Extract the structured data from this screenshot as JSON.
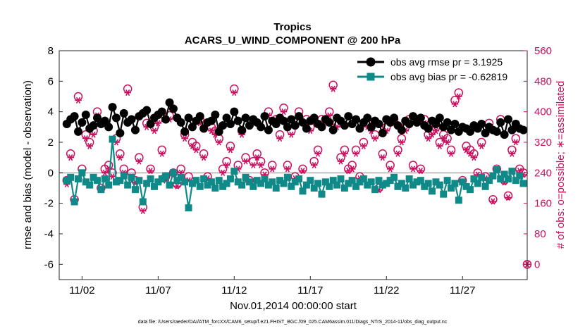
{
  "chart_data": {
    "type": "line",
    "title": "Tropics",
    "subtitle": "ACARS_U_WIND_COMPONENT @ 200 hPa",
    "xlabel": "Nov.01,2014 00:00:00 start",
    "ylabel": "rmse and bias (model - observation)",
    "ylabel_right": "# of obs: o=possible; ∗=assimilated",
    "ylim": [
      -7,
      8
    ],
    "ylim_right": [
      -40,
      560
    ],
    "xlim": [
      0.5,
      31.25
    ],
    "x_ticks": [
      {
        "x": 2,
        "label": "11/02"
      },
      {
        "x": 7,
        "label": "11/07"
      },
      {
        "x": 12,
        "label": "11/12"
      },
      {
        "x": 17,
        "label": "11/17"
      },
      {
        "x": 22,
        "label": "11/22"
      },
      {
        "x": 27,
        "label": "11/27"
      }
    ],
    "y_ticks": [
      "8",
      "6",
      "4",
      "2",
      "0",
      "-2",
      "-4",
      "-6"
    ],
    "y_ticks_right": [
      "560",
      "480",
      "400",
      "320",
      "240",
      "160",
      "80",
      "0"
    ],
    "legend_position": "top-right",
    "grid": false,
    "zero_line": 0,
    "colors": {
      "rmse": "#000000",
      "bias": "#108a88",
      "count": "#cc0e5e",
      "zero": "#c0c0c0"
    },
    "series": [
      {
        "name": "obs avg rmse pr = 3.1925",
        "axis": "left",
        "x": [
          1.0,
          1.25,
          1.5,
          1.75,
          2.0,
          2.25,
          2.5,
          2.75,
          3.0,
          3.25,
          3.5,
          3.75,
          4.0,
          4.25,
          4.5,
          4.75,
          5.0,
          5.25,
          5.5,
          5.75,
          6.0,
          6.25,
          6.5,
          6.75,
          7.0,
          7.25,
          7.5,
          7.75,
          8.0,
          8.25,
          8.5,
          8.75,
          9.0,
          9.25,
          9.5,
          9.75,
          10.0,
          10.25,
          10.5,
          10.75,
          11.0,
          11.25,
          11.5,
          11.75,
          12.0,
          12.25,
          12.5,
          12.75,
          13.0,
          13.25,
          13.5,
          13.75,
          14.0,
          14.25,
          14.5,
          14.75,
          15.0,
          15.25,
          15.5,
          15.75,
          16.0,
          16.25,
          16.5,
          16.75,
          17.0,
          17.25,
          17.5,
          17.75,
          18.0,
          18.25,
          18.5,
          18.75,
          19.0,
          19.25,
          19.5,
          19.75,
          20.0,
          20.25,
          20.5,
          20.75,
          21.0,
          21.25,
          21.5,
          21.75,
          22.0,
          22.25,
          22.5,
          22.75,
          23.0,
          23.25,
          23.5,
          23.75,
          24.0,
          24.25,
          24.5,
          24.75,
          25.0,
          25.25,
          25.5,
          25.75,
          26.0,
          26.25,
          26.5,
          26.75,
          27.0,
          27.25,
          27.5,
          27.75,
          28.0,
          28.25,
          28.5,
          28.75,
          29.0,
          29.25,
          29.5,
          29.75,
          30.0,
          30.25,
          30.5,
          30.75,
          31.0
        ],
        "values": [
          3.2,
          3.5,
          3.7,
          2.7,
          3.3,
          3.8,
          2.9,
          3.1,
          3.6,
          3.2,
          3.4,
          3.0,
          4.3,
          3.6,
          2.6,
          3.9,
          3.3,
          3.5,
          2.8,
          3.7,
          3.9,
          4.1,
          3.2,
          3.6,
          3.8,
          4.0,
          3.5,
          4.6,
          4.2,
          3.6,
          3.3,
          2.7,
          3.6,
          3.0,
          3.4,
          3.7,
          2.9,
          3.3,
          3.4,
          3.8,
          2.7,
          3.1,
          3.6,
          3.2,
          4.0,
          3.4,
          2.8,
          3.6,
          3.1,
          3.5,
          3.3,
          3.0,
          3.7,
          2.8,
          3.4,
          3.2,
          3.6,
          3.4,
          3.0,
          3.5,
          3.1,
          3.7,
          3.3,
          2.9,
          3.4,
          3.6,
          3.2,
          3.0,
          3.5,
          3.3,
          2.8,
          3.6,
          3.4,
          3.1,
          3.7,
          3.2,
          3.5,
          2.9,
          3.3,
          3.6,
          3.0,
          3.4,
          3.2,
          2.6,
          3.5,
          3.3,
          3.6,
          3.1,
          2.8,
          3.4,
          3.2,
          3.7,
          3.3,
          3.6,
          3.1,
          2.9,
          3.4,
          3.2,
          3.6,
          3.0,
          3.3,
          2.8,
          3.2,
          2.7,
          3.0,
          2.9,
          2.7,
          3.1,
          2.9,
          3.2,
          2.6,
          3.0,
          2.8,
          2.7,
          3.3,
          2.5,
          3.5,
          2.8,
          3.2,
          2.9,
          2.8
        ]
      },
      {
        "name": "obs avg bias pr = -0.62819",
        "axis": "left",
        "x": [
          1.0,
          1.25,
          1.5,
          1.75,
          2.0,
          2.25,
          2.5,
          2.75,
          3.0,
          3.25,
          3.5,
          3.75,
          4.0,
          4.25,
          4.5,
          4.75,
          5.0,
          5.25,
          5.5,
          5.75,
          6.0,
          6.25,
          6.5,
          6.75,
          7.0,
          7.25,
          7.5,
          7.75,
          8.0,
          8.25,
          8.5,
          8.75,
          9.0,
          9.25,
          9.5,
          9.75,
          10.0,
          10.25,
          10.5,
          10.75,
          11.0,
          11.25,
          11.5,
          11.75,
          12.0,
          12.25,
          12.5,
          12.75,
          13.0,
          13.25,
          13.5,
          13.75,
          14.0,
          14.25,
          14.5,
          14.75,
          15.0,
          15.25,
          15.5,
          15.75,
          16.0,
          16.25,
          16.5,
          16.75,
          17.0,
          17.25,
          17.5,
          17.75,
          18.0,
          18.25,
          18.5,
          18.75,
          19.0,
          19.25,
          19.5,
          19.75,
          20.0,
          20.25,
          20.5,
          20.75,
          21.0,
          21.25,
          21.5,
          21.75,
          22.0,
          22.25,
          22.5,
          22.75,
          23.0,
          23.25,
          23.5,
          23.75,
          24.0,
          24.25,
          24.5,
          24.75,
          25.0,
          25.25,
          25.5,
          25.75,
          26.0,
          26.25,
          26.5,
          26.75,
          27.0,
          27.25,
          27.5,
          27.75,
          28.0,
          28.25,
          28.5,
          28.75,
          29.0,
          29.25,
          29.5,
          29.75,
          30.0,
          30.25,
          30.5,
          30.75,
          31.0
        ],
        "values": [
          -0.5,
          -0.3,
          -1.9,
          -0.4,
          0.0,
          -0.6,
          -0.8,
          -0.3,
          -0.5,
          -1.1,
          -0.4,
          -0.8,
          2.2,
          -0.6,
          -0.5,
          -0.2,
          -0.8,
          -0.3,
          -1.1,
          -0.5,
          -1.9,
          -0.7,
          -0.4,
          -0.9,
          -0.6,
          -0.4,
          -0.2,
          -0.8,
          0.0,
          -0.5,
          -0.3,
          -0.6,
          -2.3,
          -0.7,
          -0.5,
          -0.9,
          -0.4,
          -0.8,
          -0.6,
          -1.0,
          -0.5,
          -0.9,
          -0.7,
          -0.4,
          0.1,
          -0.6,
          -0.8,
          -0.3,
          -0.6,
          -0.9,
          -0.5,
          -0.7,
          -0.4,
          -0.8,
          -0.6,
          -1.0,
          -0.5,
          -0.7,
          -0.3,
          -0.9,
          -0.6,
          -0.4,
          -1.2,
          -0.8,
          -0.5,
          -1.0,
          -0.7,
          -1.4,
          -0.6,
          -0.9,
          -0.5,
          -0.8,
          -0.4,
          -1.0,
          -0.7,
          -0.5,
          -0.9,
          -0.6,
          -0.4,
          -0.8,
          -0.6,
          -1.1,
          -0.5,
          -0.8,
          -0.7,
          -0.5,
          -0.3,
          -0.9,
          -0.7,
          -1.0,
          -0.4,
          -0.8,
          -0.6,
          -0.5,
          -0.9,
          -0.7,
          -1.2,
          -0.6,
          -0.8,
          -1.4,
          -0.5,
          -1.0,
          -0.7,
          -1.8,
          -0.6,
          -0.9,
          -1.1,
          -0.4,
          -0.7,
          -0.3,
          -0.9,
          -0.5,
          -0.2,
          0.2,
          -0.4,
          -0.1,
          -0.4,
          0.1,
          -0.5,
          -0.2,
          -0.7
        ]
      },
      {
        "name": "obs count possible",
        "axis": "right",
        "marker": "circle",
        "x": [
          1.0,
          1.25,
          1.5,
          1.75,
          2.0,
          2.25,
          2.5,
          2.75,
          3.0,
          3.25,
          3.5,
          3.75,
          4.0,
          4.25,
          4.5,
          4.75,
          5.0,
          5.25,
          5.5,
          5.75,
          6.0,
          6.25,
          6.5,
          6.75,
          7.0,
          7.25,
          7.5,
          7.75,
          8.0,
          8.25,
          8.5,
          8.75,
          9.0,
          9.25,
          9.5,
          9.75,
          10.0,
          10.25,
          10.5,
          10.75,
          11.0,
          11.25,
          11.5,
          11.75,
          12.0,
          12.25,
          12.5,
          12.75,
          13.0,
          13.25,
          13.5,
          13.75,
          14.0,
          14.25,
          14.5,
          14.75,
          15.0,
          15.25,
          15.5,
          15.75,
          16.0,
          16.25,
          16.5,
          16.75,
          17.0,
          17.25,
          17.5,
          17.75,
          18.0,
          18.25,
          18.5,
          18.75,
          19.0,
          19.25,
          19.5,
          19.75,
          20.0,
          20.25,
          20.5,
          20.75,
          21.0,
          21.25,
          21.5,
          21.75,
          22.0,
          22.25,
          22.5,
          22.75,
          23.0,
          23.25,
          23.5,
          23.75,
          24.0,
          24.25,
          24.5,
          24.75,
          25.0,
          25.25,
          25.5,
          25.75,
          26.0,
          26.25,
          26.5,
          26.75,
          27.0,
          27.25,
          27.5,
          27.75,
          28.0,
          28.25,
          28.5,
          28.75,
          29.0,
          29.25,
          29.5,
          29.75,
          30.0,
          30.25,
          30.5,
          30.75,
          31.0,
          31.25
        ],
        "values": [
          220,
          290,
          170,
          440,
          250,
          340,
          320,
          350,
          400,
          200,
          250,
          260,
          240,
          330,
          290,
          250,
          460,
          240,
          220,
          280,
          150,
          370,
          250,
          360,
          380,
          300,
          230,
          390,
          240,
          210,
          250,
          340,
          230,
          320,
          310,
          380,
          290,
          230,
          360,
          350,
          330,
          250,
          270,
          310,
          460,
          260,
          350,
          280,
          220,
          270,
          290,
          270,
          240,
          400,
          260,
          380,
          340,
          410,
          260,
          350,
          230,
          400,
          250,
          380,
          360,
          270,
          300,
          380,
          380,
          400,
          470,
          370,
          280,
          300,
          250,
          260,
          300,
          230,
          320,
          370,
          360,
          340,
          200,
          290,
          360,
          260,
          380,
          300,
          330,
          360,
          380,
          260,
          380,
          250,
          380,
          340,
          350,
          360,
          320,
          340,
          330,
          300,
          430,
          450,
          220,
          310,
          300,
          290,
          240,
          320,
          230,
          370,
          170,
          250,
          380,
          220,
          180,
          300,
          330,
          250,
          240,
          0
        ],
        "labels": [
          "0"
        ]
      },
      {
        "name": "obs count assimilated",
        "axis": "right",
        "marker": "asterisk",
        "x": [
          1.0,
          1.25,
          1.5,
          1.75,
          2.0,
          2.25,
          2.5,
          2.75,
          3.0,
          3.25,
          3.5,
          3.75,
          4.0,
          4.25,
          4.5,
          4.75,
          5.0,
          5.25,
          5.5,
          5.75,
          6.0,
          6.25,
          6.5,
          6.75,
          7.0,
          7.25,
          7.5,
          7.75,
          8.0,
          8.25,
          8.5,
          8.75,
          9.0,
          9.25,
          9.5,
          9.75,
          10.0,
          10.25,
          10.5,
          10.75,
          11.0,
          11.25,
          11.5,
          11.75,
          12.0,
          12.25,
          12.5,
          12.75,
          13.0,
          13.25,
          13.5,
          13.75,
          14.0,
          14.25,
          14.5,
          14.75,
          15.0,
          15.25,
          15.5,
          15.75,
          16.0,
          16.25,
          16.5,
          16.75,
          17.0,
          17.25,
          17.5,
          17.75,
          18.0,
          18.25,
          18.5,
          18.75,
          19.0,
          19.25,
          19.5,
          19.75,
          20.0,
          20.25,
          20.5,
          20.75,
          21.0,
          21.25,
          21.5,
          21.75,
          22.0,
          22.25,
          22.5,
          22.75,
          23.0,
          23.25,
          23.5,
          23.75,
          24.0,
          24.25,
          24.5,
          24.75,
          25.0,
          25.25,
          25.5,
          25.75,
          26.0,
          26.25,
          26.5,
          26.75,
          27.0,
          27.25,
          27.5,
          27.75,
          28.0,
          28.25,
          28.5,
          28.75,
          29.0,
          29.25,
          29.5,
          29.75,
          30.0,
          30.25,
          30.5,
          30.75,
          31.0,
          31.25
        ],
        "values": [
          210,
          280,
          165,
          430,
          240,
          330,
          310,
          340,
          390,
          195,
          240,
          250,
          230,
          320,
          280,
          240,
          450,
          230,
          215,
          270,
          140,
          360,
          245,
          350,
          370,
          290,
          220,
          380,
          235,
          205,
          240,
          330,
          220,
          310,
          300,
          370,
          280,
          225,
          350,
          340,
          320,
          240,
          260,
          300,
          450,
          250,
          340,
          270,
          215,
          260,
          280,
          260,
          235,
          390,
          250,
          370,
          330,
          400,
          250,
          340,
          225,
          390,
          245,
          370,
          350,
          260,
          290,
          370,
          370,
          390,
          460,
          360,
          270,
          290,
          245,
          250,
          290,
          225,
          310,
          360,
          350,
          330,
          195,
          280,
          350,
          250,
          370,
          290,
          320,
          350,
          370,
          250,
          370,
          245,
          370,
          330,
          340,
          350,
          310,
          330,
          320,
          290,
          420,
          440,
          215,
          300,
          290,
          280,
          235,
          310,
          225,
          360,
          165,
          245,
          370,
          215,
          175,
          290,
          320,
          245,
          235,
          0
        ]
      }
    ]
  },
  "footer": {
    "data_file": "data file: /Users/raeder/DAI/ATM_forcXX/CAM6_setup/f.e21.FHIST_BGC.f09_025.CAM6assim.011/Diags_NTrS_2014-11/obs_diag_output.nc"
  }
}
